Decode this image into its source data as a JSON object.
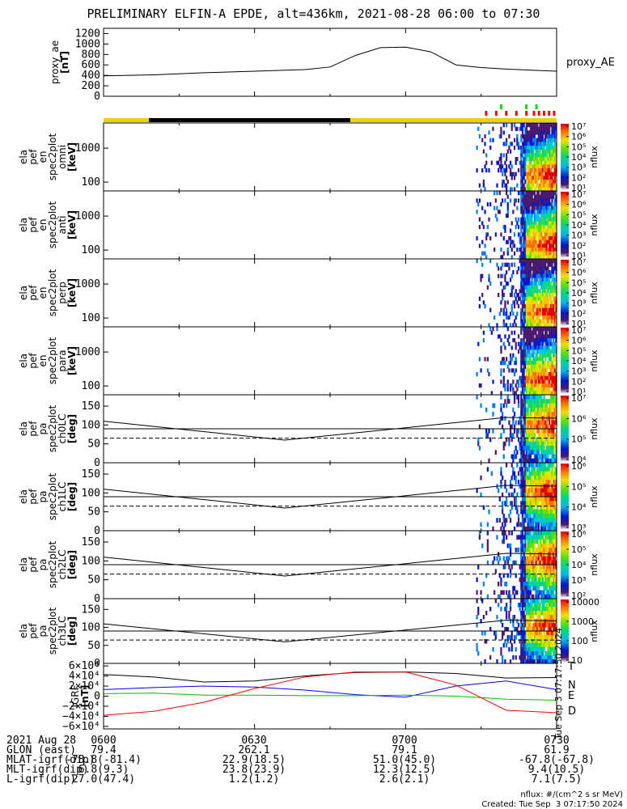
{
  "chart_data": {
    "title": "PRELIMINARY ELFIN-A EPDE, alt=436km, 2021-08-28 06:00 to 07:30",
    "time_range": [
      "06:00",
      "07:30"
    ],
    "time_tick_labels": [
      "0600",
      "0630",
      "0700",
      "0730"
    ],
    "panels": [
      {
        "id": "proxy_ae",
        "type": "line",
        "ylabel": [
          "proxy_ae",
          "[nT]"
        ],
        "ylim": [
          0,
          1300
        ],
        "ytick_labels": [
          "0",
          "200",
          "400",
          "600",
          "800",
          "1000",
          "1200"
        ],
        "legend": "proxy_AE",
        "series": [
          {
            "name": "proxy_AE",
            "x": [
              0,
              10,
              20,
              30,
              40,
              45,
              50,
              55,
              60,
              65,
              70,
              75,
              80,
              85,
              90
            ],
            "y": [
              390,
              410,
              450,
              480,
              510,
              560,
              780,
              930,
              940,
              850,
              600,
              550,
              520,
              500,
              480
            ]
          }
        ]
      },
      {
        "id": "spec_omni",
        "type": "heatmap",
        "ylabel": [
          "ela",
          "pef",
          "en",
          "spec2plot",
          "omni",
          "[keV]"
        ],
        "yscale": "log",
        "ytick_labels": [
          "100",
          "1000"
        ],
        "colorbar": {
          "label": "nflux",
          "ticks": [
            "10¹",
            "10²",
            "10³",
            "10⁴",
            "10⁵",
            "10⁶",
            "10⁷"
          ]
        }
      },
      {
        "id": "spec_anti",
        "type": "heatmap",
        "ylabel": [
          "ela",
          "pef",
          "en",
          "spec2plot",
          "anti",
          "[keV]"
        ],
        "yscale": "log",
        "ytick_labels": [
          "100",
          "1000"
        ],
        "colorbar": {
          "label": "nflux",
          "ticks": [
            "10¹",
            "10²",
            "10³",
            "10⁴",
            "10⁵",
            "10⁶",
            "10⁷"
          ]
        }
      },
      {
        "id": "spec_perp",
        "type": "heatmap",
        "ylabel": [
          "ela",
          "pef",
          "en",
          "spec2plot",
          "perp",
          "[keV]"
        ],
        "yscale": "log",
        "ytick_labels": [
          "100",
          "1000"
        ],
        "colorbar": {
          "label": "nflux",
          "ticks": [
            "10¹",
            "10²",
            "10³",
            "10⁴",
            "10⁵",
            "10⁶",
            "10⁷"
          ]
        }
      },
      {
        "id": "spec_para",
        "type": "heatmap",
        "ylabel": [
          "ela",
          "pef",
          "en",
          "spec2plot",
          "para",
          "[keV]"
        ],
        "yscale": "log",
        "ytick_labels": [
          "100",
          "1000"
        ],
        "colorbar": {
          "label": "nflux",
          "ticks": [
            "10¹",
            "10²",
            "10³",
            "10⁴",
            "10⁵",
            "10⁶",
            "10⁷"
          ]
        }
      },
      {
        "id": "pa_ch0",
        "type": "heatmap",
        "ylabel": [
          "ela",
          "pef",
          "pa",
          "spec2plot",
          "ch0LC",
          "[deg]"
        ],
        "ylim": [
          0,
          180
        ],
        "ytick_labels": [
          "0",
          "50",
          "100",
          "150"
        ],
        "colorbar": {
          "label": "nflux",
          "ticks": [
            "10⁴",
            "10⁵",
            "10⁶",
            "10⁷"
          ]
        }
      },
      {
        "id": "pa_ch1",
        "type": "heatmap",
        "ylabel": [
          "ela",
          "pef",
          "pa",
          "spec2plot",
          "ch1LC",
          "[deg]"
        ],
        "ylim": [
          0,
          180
        ],
        "ytick_labels": [
          "0",
          "50",
          "100",
          "150"
        ],
        "colorbar": {
          "label": "nflux",
          "ticks": [
            "10³",
            "10⁴",
            "10⁵",
            "10⁶"
          ]
        }
      },
      {
        "id": "pa_ch2",
        "type": "heatmap",
        "ylabel": [
          "ela",
          "pef",
          "pa",
          "spec2plot",
          "ch2LC",
          "[deg]"
        ],
        "ylim": [
          0,
          180
        ],
        "ytick_labels": [
          "0",
          "50",
          "100",
          "150"
        ],
        "colorbar": {
          "label": "nflux",
          "ticks": [
            "10²",
            "10³",
            "10⁴",
            "10⁵",
            "10⁶"
          ]
        }
      },
      {
        "id": "pa_ch3",
        "type": "heatmap",
        "ylabel": [
          "ela",
          "pef",
          "pa",
          "spec2plot",
          "ch3LC",
          "[deg]"
        ],
        "ylim": [
          0,
          180
        ],
        "ytick_labels": [
          "0",
          "50",
          "100",
          "150"
        ],
        "colorbar": {
          "label": "nflux",
          "ticks": [
            "10",
            "100",
            "1000",
            "10000"
          ]
        }
      },
      {
        "id": "igrf",
        "type": "line",
        "ylabel": [
          "IGRF",
          "[nT]"
        ],
        "ylim": [
          -65000,
          65000
        ],
        "ytick_labels": [
          "6×10⁴",
          "4×10⁴",
          "2×10⁴",
          "0",
          "−2×10⁴",
          "−4×10⁴",
          "−6×10⁴"
        ],
        "ytick_values": [
          60000,
          40000,
          20000,
          0,
          -20000,
          -40000,
          -60000
        ],
        "series": [
          {
            "name": "T",
            "color": "#000000",
            "x": [
              0,
              10,
              20,
              30,
              40,
              50,
              60,
              70,
              80,
              90
            ],
            "y": [
              43000,
              38000,
              28000,
              30000,
              40000,
              47000,
              48000,
              45000,
              36000,
              37000
            ]
          },
          {
            "name": "N",
            "color": "#0000ff",
            "x": [
              0,
              10,
              20,
              30,
              40,
              50,
              60,
              70,
              80,
              90
            ],
            "y": [
              13000,
              17000,
              20000,
              18000,
              12000,
              3000,
              -2000,
              20000,
              30000,
              13000
            ]
          },
          {
            "name": "E",
            "color": "#00c000",
            "x": [
              0,
              10,
              20,
              30,
              40,
              50,
              60,
              70,
              80,
              90
            ],
            "y": [
              5000,
              6000,
              2000,
              2000,
              1000,
              1000,
              2000,
              0,
              -6000,
              -8000
            ]
          },
          {
            "name": "D",
            "color": "#ff0000",
            "x": [
              0,
              10,
              20,
              30,
              40,
              50,
              60,
              70,
              80,
              90
            ],
            "y": [
              -38000,
              -30000,
              -12000,
              15000,
              38000,
              48000,
              48000,
              22000,
              -28000,
              -33000
            ]
          }
        ]
      }
    ]
  },
  "ephemeris": {
    "rows": [
      {
        "label": "2021 Aug 28",
        "values": [
          "0600",
          "0630",
          "0700",
          "0730"
        ]
      },
      {
        "label": "GLON (east)",
        "values": [
          "79.4",
          "262.1",
          "79.1",
          "61.9"
        ]
      },
      {
        "label": "MLAT-igrf(dip)",
        "values": [
          "-78.8(-81.4)",
          "22.9(18.5)",
          "51.0(45.0)",
          "-67.8(-67.8)"
        ]
      },
      {
        "label": "MLT-igrf(dip)",
        "values": [
          "6.8(9.3)",
          "23.8(23.9)",
          "12.3(12.5)",
          "9.4(10.5)"
        ]
      },
      {
        "label": "L-igrf(dip)",
        "values": [
          "27.0(47.4)",
          "1.2(1.2)",
          "2.6(2.1)",
          "7.1(7.5)"
        ]
      }
    ]
  },
  "footer": {
    "units": "nflux: #/(cm^2 s sr MeV)",
    "created": "Created: Tue Sep  3 07:17:50 2024",
    "side_stamp": "Tue Sep  3 07:17:50 2024"
  },
  "colors": {
    "orbit_bar_day": "#f5d000",
    "orbit_bar_night": "#000000",
    "flag_red": "#ff0000",
    "flag_green": "#00dd00"
  }
}
